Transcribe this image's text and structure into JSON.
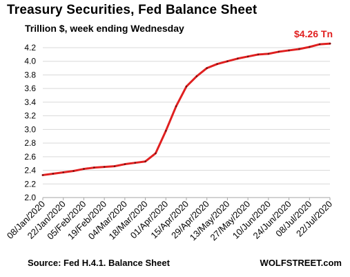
{
  "header": {
    "title": "Treasury Securities, Fed Balance Sheet",
    "subtitle": "Trillion $, week ending Wednesday"
  },
  "footer": {
    "source": "Source: Fed H.4.1. Balance Sheet",
    "brand": "WOLFSTREET.com"
  },
  "colors": {
    "line": "#e02020",
    "grid": "#d9d9d9",
    "axis": "#a6a6a6"
  },
  "chart_data": {
    "type": "line",
    "title": "Treasury Securities, Fed Balance Sheet",
    "subtitle": "Trillion $, week ending Wednesday",
    "xlabel": "",
    "ylabel": "",
    "ylim": [
      2.0,
      4.2
    ],
    "yticks": [
      "2.0",
      "2.2",
      "2.4",
      "2.6",
      "2.8",
      "3.0",
      "3.2",
      "3.4",
      "3.6",
      "3.8",
      "4.0",
      "4.2"
    ],
    "xtick_labels": [
      "08/Jan/2020",
      "22/Jan/2020",
      "05/Feb/2020",
      "19/Feb/2020",
      "04/Mar/2020",
      "18/Mar/2020",
      "01/Apr/2020",
      "15/Apr/2020",
      "29/Apr/2020",
      "13/May/2020",
      "27/May/2020",
      "10/Jun/2020",
      "24/Jun/2020",
      "08/Jul/2020",
      "22/Jul/2020"
    ],
    "grid": true,
    "legend": "none",
    "end_annotation": "$4.26 Tn",
    "series": [
      {
        "x": [
          "08/Jan/2020",
          "15/Jan/2020",
          "22/Jan/2020",
          "29/Jan/2020",
          "05/Feb/2020",
          "12/Feb/2020",
          "19/Feb/2020",
          "26/Feb/2020",
          "04/Mar/2020",
          "11/Mar/2020",
          "18/Mar/2020",
          "25/Mar/2020",
          "01/Apr/2020",
          "08/Apr/2020",
          "15/Apr/2020",
          "22/Apr/2020",
          "29/Apr/2020",
          "06/May/2020",
          "13/May/2020",
          "20/May/2020",
          "27/May/2020",
          "03/Jun/2020",
          "10/Jun/2020",
          "17/Jun/2020",
          "24/Jun/2020",
          "01/Jul/2020",
          "08/Jul/2020",
          "15/Jul/2020",
          "22/Jul/2020"
        ],
        "values": [
          2.33,
          2.35,
          2.37,
          2.39,
          2.42,
          2.44,
          2.45,
          2.46,
          2.49,
          2.51,
          2.53,
          2.65,
          2.98,
          3.34,
          3.63,
          3.78,
          3.9,
          3.96,
          4.0,
          4.04,
          4.07,
          4.1,
          4.11,
          4.14,
          4.16,
          4.18,
          4.21,
          4.25,
          4.26
        ]
      }
    ]
  }
}
